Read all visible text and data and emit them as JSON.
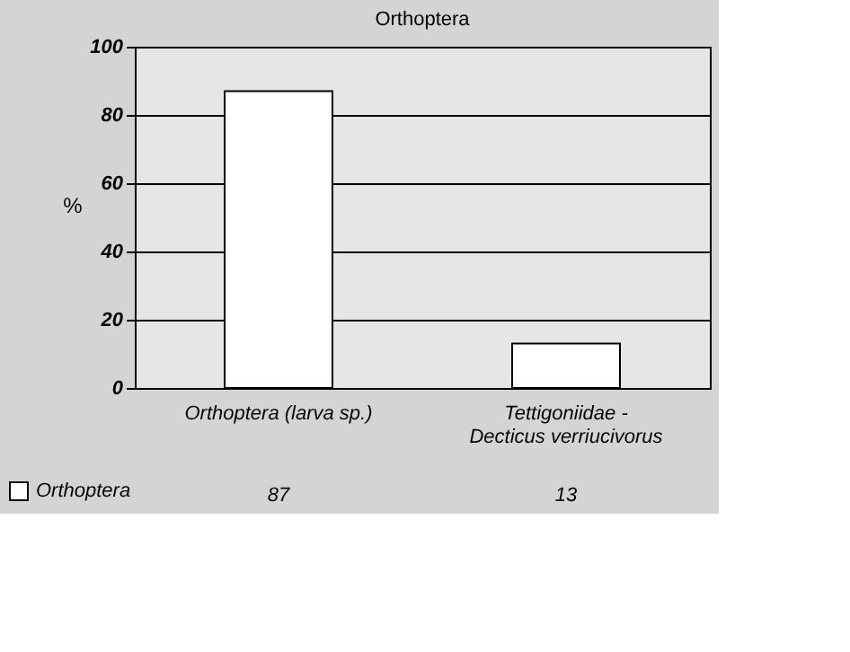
{
  "chart_data": {
    "type": "bar",
    "title": "Orthoptera",
    "ylabel": "%",
    "categories": [
      "Orthoptera (larva sp.)",
      "Tettigoniidae - Decticus verriucivorus"
    ],
    "series": [
      {
        "name": "Orthoptera",
        "color": "#ffffff",
        "values": [
          87,
          13
        ]
      }
    ],
    "ylim": [
      0,
      100
    ],
    "yticks": [
      0,
      20,
      40,
      60,
      80,
      100
    ],
    "grid": "y",
    "legend": "bottom",
    "data_labels": true
  }
}
